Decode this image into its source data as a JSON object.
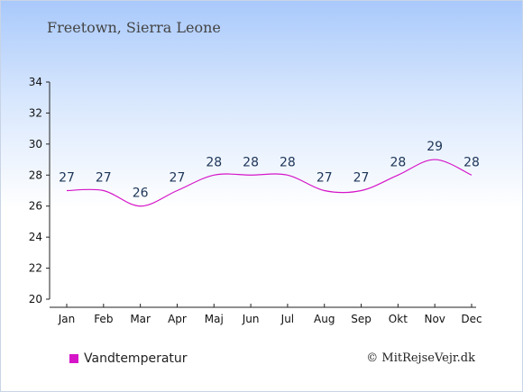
{
  "header": {
    "location": "Freetown, Sierra Leone"
  },
  "footer": {
    "credit": "© MitRejseVejr.dk"
  },
  "chart_data": {
    "type": "line",
    "title": "Freetown, Sierra Leone",
    "xlabel": "",
    "ylabel": "",
    "categories": [
      "Jan",
      "Feb",
      "Mar",
      "Apr",
      "Maj",
      "Jun",
      "Jul",
      "Aug",
      "Sep",
      "Okt",
      "Nov",
      "Dec"
    ],
    "series": [
      {
        "name": "Vandtemperatur",
        "color": "#d615c8",
        "values": [
          27,
          27,
          26,
          27,
          28,
          28,
          28,
          27,
          27,
          28,
          29,
          28
        ]
      }
    ],
    "ylim": [
      20,
      34
    ],
    "yticks": [
      20,
      22,
      24,
      26,
      28,
      30,
      32,
      34
    ],
    "grid": false,
    "legend": "bottom-left"
  }
}
